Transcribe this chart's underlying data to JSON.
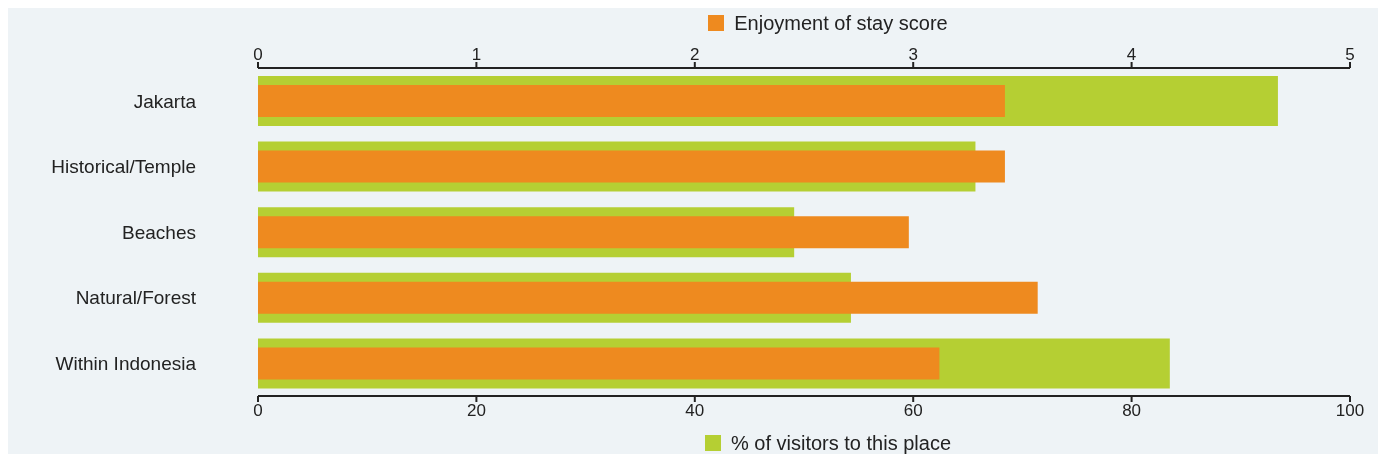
{
  "chart_data": {
    "type": "bar",
    "orientation": "horizontal",
    "categories": [
      "Jakarta",
      "Historical/Temple",
      "Beaches",
      "Natural/Forest",
      "Within Indonesia"
    ],
    "series": [
      {
        "name": "% of visitors to this place",
        "color": "#b5cf33",
        "values": [
          93.4,
          65.7,
          49.1,
          54.3,
          83.5
        ]
      },
      {
        "name": "Enjoyment of stay score",
        "color": "#ee8a1f",
        "axis": "x2",
        "values": [
          3.42,
          3.42,
          2.98,
          3.57,
          3.12
        ]
      }
    ],
    "xlim": [
      0,
      100
    ],
    "xticks": [
      0,
      20,
      40,
      60,
      80,
      100
    ],
    "x2lim": [
      0,
      5
    ],
    "x2ticks": [
      0,
      1,
      2,
      3,
      4,
      5
    ],
    "legend": "top"
  }
}
